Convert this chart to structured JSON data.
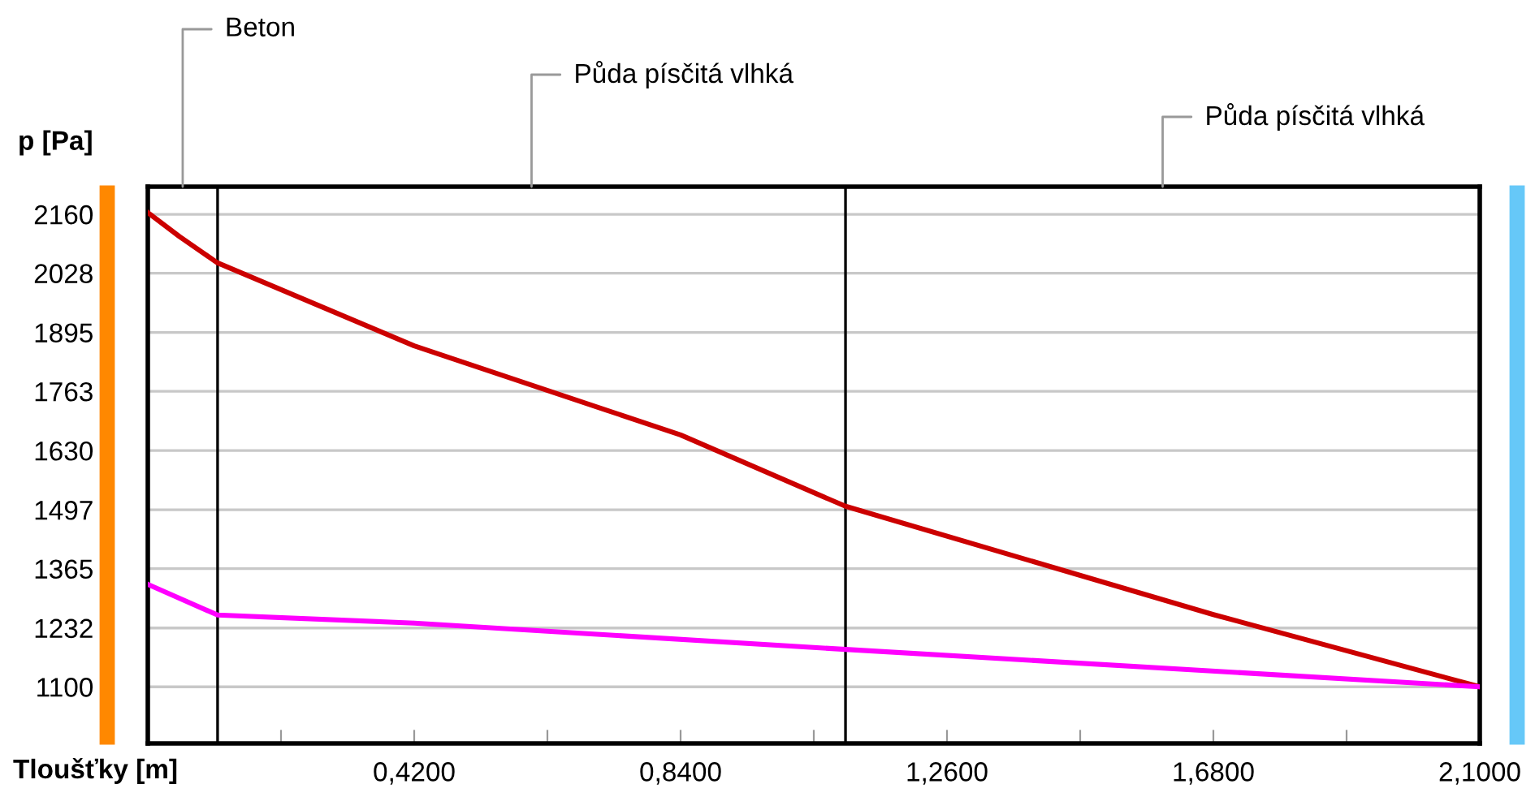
{
  "chart_data": {
    "type": "line",
    "xlabel": "Tloušťky [m]",
    "ylabel": "p [Pa]",
    "series": [
      {
        "color": "#cc0000",
        "x": [
          0,
          0.05,
          0.11,
          0.42,
          0.84,
          1.1,
          1.68,
          2.1
        ],
        "values": [
          2164,
          2110,
          2051,
          1865,
          1665,
          1505,
          1262,
          1100
        ]
      },
      {
        "color": "#ff00ff",
        "x": [
          0,
          0.11,
          0.42,
          1.1,
          2.1
        ],
        "values": [
          1330,
          1261,
          1243,
          1184,
          1100
        ]
      }
    ],
    "xlim": [
      0,
      2.1
    ],
    "ylim": [
      973,
      2222
    ],
    "xticks": [
      {
        "value": 0.21,
        "label": null
      },
      {
        "value": 0.42,
        "label": "0,4200"
      },
      {
        "value": 0.63,
        "label": null
      },
      {
        "value": 0.84,
        "label": "0,8400"
      },
      {
        "value": 1.05,
        "label": null
      },
      {
        "value": 1.26,
        "label": "1,2600"
      },
      {
        "value": 1.47,
        "label": null
      },
      {
        "value": 1.68,
        "label": "1,6800"
      },
      {
        "value": 1.89,
        "label": null
      },
      {
        "value": 2.1,
        "label": "2,1000"
      }
    ],
    "yticks": [
      1100,
      1232,
      1365,
      1497,
      1630,
      1763,
      1895,
      2028,
      2160
    ],
    "grid": "y",
    "legend": false,
    "marker": "none",
    "line_style": "solid",
    "ref_lines": [
      {
        "axis": "x",
        "value": 0.11,
        "color": "#000000"
      },
      {
        "axis": "x",
        "value": 1.1,
        "color": "#000000"
      }
    ],
    "annotations": [
      "Beton",
      "Půda písčitá vlhká",
      "Půda písčitá vlhká"
    ]
  }
}
